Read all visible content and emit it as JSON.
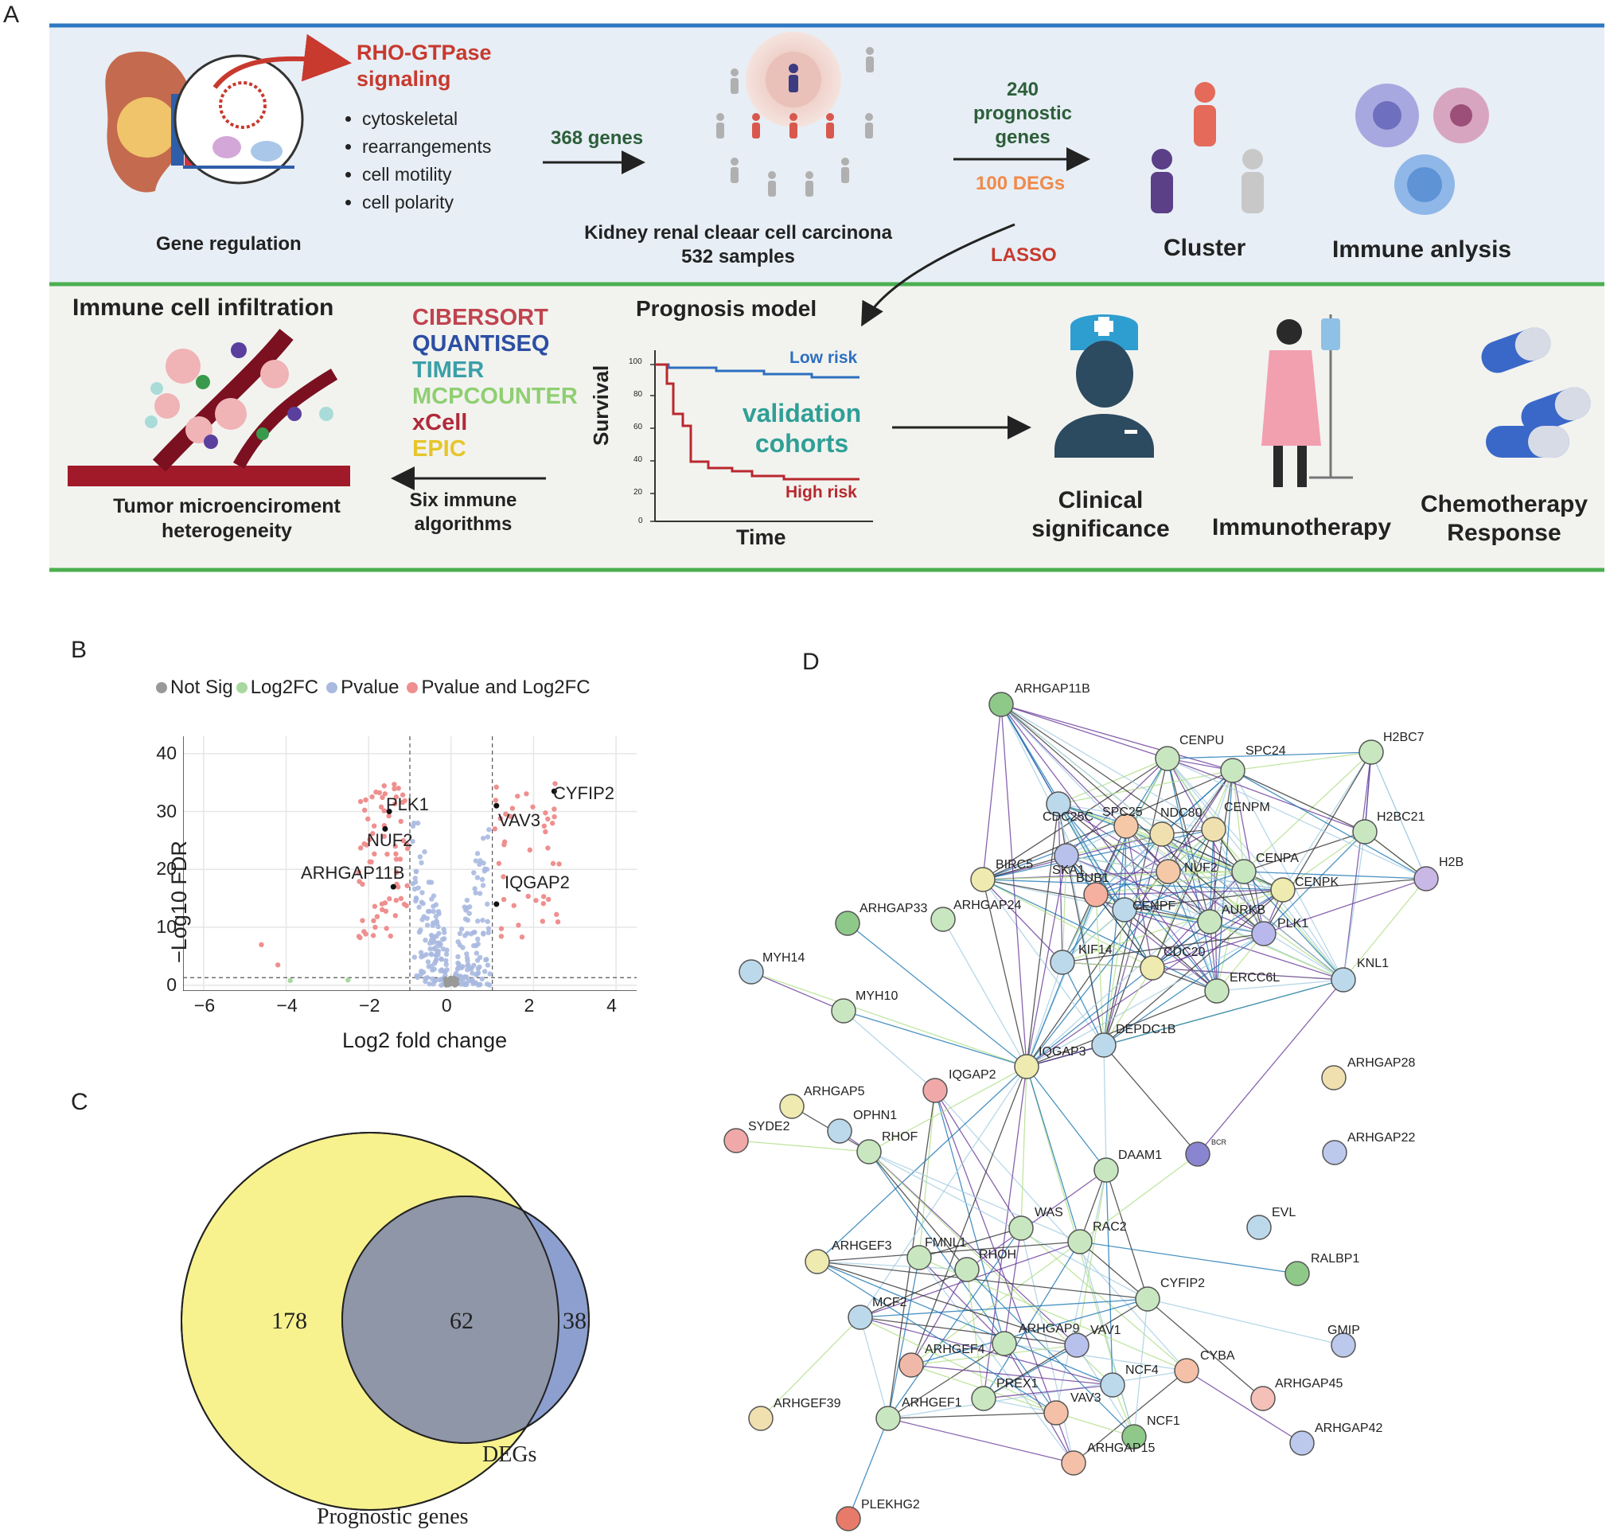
{
  "panels": {
    "a": "A",
    "b": "B",
    "c": "C",
    "d": "D"
  },
  "panelA": {
    "gene_regulation": "Gene regulation",
    "rho_title": "RHO-GTPase signaling",
    "rho_line1": "RHO-GTPase",
    "rho_line2": "signaling",
    "bullets": [
      "cytoskeletal",
      "rearrangements",
      "cell motility",
      "cell polarity"
    ],
    "genes368": "368 genes",
    "kirc_line1": "Kidney renal cleaar cell carcinona",
    "kirc_line2": "532 samples",
    "prog_line1": "240",
    "prog_line2": "prognostic",
    "prog_line3": "genes",
    "degs": "100 DEGs",
    "lasso": "LASSO",
    "cluster": "Cluster",
    "immune": "Immune anlysis",
    "infiltration": "Immune cell infiltration",
    "algorithms": [
      {
        "name": "CIBERSORT",
        "color": "#c0434e"
      },
      {
        "name": "QUANTISEQ",
        "color": "#2c4ea3"
      },
      {
        "name": "TIMER",
        "color": "#3aa0a8"
      },
      {
        "name": "MCPCOUNTER",
        "color": "#8fcf72"
      },
      {
        "name": "xCell",
        "color": "#b02a3a"
      },
      {
        "name": "EPIC",
        "color": "#e6c52a"
      }
    ],
    "tme_line1": "Tumor microenciroment",
    "tme_line2": "heterogeneity",
    "six_line1": "Six immune",
    "six_line2": "algorithms",
    "prognosis_model": "Prognosis model",
    "survival": "Survival",
    "time": "Time",
    "low_risk": "Low risk",
    "high_risk": "High risk",
    "validation1": "validation",
    "validation2": "cohorts",
    "km_ticks": [
      "100",
      "80",
      "60",
      "40",
      "20",
      "0"
    ],
    "clinical1": "Clinical",
    "clinical2": "significance",
    "immunotherapy": "Immunotherapy",
    "chemo1": "Chemotherapy",
    "chemo2": "Response"
  },
  "volcano": {
    "legend": [
      "Not Sig",
      "Log2FC",
      "Pvalue",
      "Pvalue and Log2FC"
    ],
    "legend_colors": [
      "#999999",
      "#a8d8a0",
      "#a9b9e0",
      "#ef8f8f"
    ],
    "ylabel": "−Log10 FDR",
    "xlabel": "Log2 fold change",
    "xticks": [
      "−6",
      "−4",
      "−2",
      "0",
      "2",
      "4"
    ],
    "yticks": [
      "0",
      "10",
      "20",
      "30",
      "40"
    ],
    "labels": [
      "PLK1",
      "NUF2",
      "ARHGAP11B",
      "CYFIP2",
      "VAV3",
      "IQGAP2"
    ]
  },
  "chart_data": {
    "type": "scatter",
    "xlabel": "Log2 fold change",
    "ylabel": "−Log10 FDR",
    "xlim": [
      -6.5,
      4.5
    ],
    "ylim": [
      -1,
      43
    ],
    "thresholds": {
      "log2fc": [
        -1,
        1
      ],
      "fdr": 1.3
    },
    "highlighted": [
      {
        "name": "PLK1",
        "x": -1.5,
        "y": 30
      },
      {
        "name": "NUF2",
        "x": -1.6,
        "y": 27
      },
      {
        "name": "ARHGAP11B",
        "x": -1.4,
        "y": 17
      },
      {
        "name": "CYFIP2",
        "x": 2.5,
        "y": 33.5
      },
      {
        "name": "VAV3",
        "x": 1.1,
        "y": 31
      },
      {
        "name": "IQGAP2",
        "x": 1.1,
        "y": 14
      }
    ]
  },
  "venn": {
    "left_only": "178",
    "overlap": "62",
    "right_only": "38",
    "left_label": "Prognostic genes",
    "right_label": "DEGs",
    "left_color": "#f7f28e",
    "right_color": "#8c9fcf"
  },
  "network": {
    "nodes": [
      {
        "label": "ARHGAP11B",
        "color": "#8fc98a"
      },
      {
        "label": "CENPU",
        "color": "#c8e7c0"
      },
      {
        "label": "SPC24",
        "color": "#c8e7c0"
      },
      {
        "label": "H2BC7",
        "color": "#c8e7c0"
      },
      {
        "label": "CDC25C",
        "color": "#bcd9ec"
      },
      {
        "label": "SPC25",
        "color": "#f5c9a8"
      },
      {
        "label": "NDC80",
        "color": "#f0e0b0"
      },
      {
        "label": "CENPM",
        "color": "#f0e0b0"
      },
      {
        "label": "H2BC21",
        "color": "#c8e7c0"
      },
      {
        "label": "BIRC5",
        "color": "#eeeab0"
      },
      {
        "label": "SKA1",
        "color": "#b8c0ec"
      },
      {
        "label": "NUF2",
        "color": "#f5c9a8"
      },
      {
        "label": "CENPA",
        "color": "#c8e7c0"
      },
      {
        "label": "H2B",
        "color": "#c9b8e6"
      },
      {
        "label": "BUB1",
        "color": "#f5b0a0"
      },
      {
        "label": "CENPK",
        "color": "#eeeab0"
      },
      {
        "label": "CENPF",
        "color": "#bcd9ec"
      },
      {
        "label": "AURKB",
        "color": "#c8e7c0"
      },
      {
        "label": "PLK1",
        "color": "#b8b8ec"
      },
      {
        "label": "ARHGAP33",
        "color": "#8fc98a"
      },
      {
        "label": "ARHGAP24",
        "color": "#c8e7c0"
      },
      {
        "label": "MYH14",
        "color": "#bcd9ec"
      },
      {
        "label": "KIF14",
        "color": "#bcd9ec"
      },
      {
        "label": "CDC20",
        "color": "#eeeab0"
      },
      {
        "label": "ERCC6L",
        "color": "#c8e7c0"
      },
      {
        "label": "KNL1",
        "color": "#bcd9ec"
      },
      {
        "label": "MYH10",
        "color": "#c8e7c0"
      },
      {
        "label": "DEPDC1B",
        "color": "#bcd9ec"
      },
      {
        "label": "IQGAP3",
        "color": "#eeeab0"
      },
      {
        "label": "ARHGAP28",
        "color": "#f0e0b0"
      },
      {
        "label": "IQGAP2",
        "color": "#f0a8a8"
      },
      {
        "label": "ARHGAP5",
        "color": "#eeeab0"
      },
      {
        "label": "OPHN1",
        "color": "#bcd9ec"
      },
      {
        "label": "SYDE2",
        "color": "#f0a8a8"
      },
      {
        "label": "RHOF",
        "color": "#c8e7c0"
      },
      {
        "label": "ARHGAP22",
        "color": "#bcc8ec"
      },
      {
        "label": "BCR",
        "color": "#8a85d0"
      },
      {
        "label": "DAAM1",
        "color": "#c8e7c0"
      },
      {
        "label": "EVL",
        "color": "#bcd9ec"
      },
      {
        "label": "WAS",
        "color": "#c8e7c0"
      },
      {
        "label": "RAC2",
        "color": "#c8e7c0"
      },
      {
        "label": "ARHGEF3",
        "color": "#eeeab0"
      },
      {
        "label": "FMNL1",
        "color": "#c8e7c0"
      },
      {
        "label": "RHOH",
        "color": "#c8e7c0"
      },
      {
        "label": "RALBP1",
        "color": "#8fc98a"
      },
      {
        "label": "CYFIP2",
        "color": "#c8e7c0"
      },
      {
        "label": "MCF2",
        "color": "#bcd9ec"
      },
      {
        "label": "GMIP",
        "color": "#bcc8ec"
      },
      {
        "label": "ARHGAP9",
        "color": "#c8e7c0"
      },
      {
        "label": "VAV1",
        "color": "#b8c0ec"
      },
      {
        "label": "ARHGEF4",
        "color": "#f0b8a8"
      },
      {
        "label": "CYBA",
        "color": "#f5c0a8"
      },
      {
        "label": "NCF4",
        "color": "#bcd9ec"
      },
      {
        "label": "ARHGAP45",
        "color": "#f5c0b8"
      },
      {
        "label": "ARHGEF39",
        "color": "#f0e0b0"
      },
      {
        "label": "PREX1",
        "color": "#c8e7c0"
      },
      {
        "label": "ARHGEF1",
        "color": "#c8e7c0"
      },
      {
        "label": "VAV3",
        "color": "#f5c0a8"
      },
      {
        "label": "NCF1",
        "color": "#8fc98a"
      },
      {
        "label": "ARHGAP42",
        "color": "#bcc8ec"
      },
      {
        "label": "ARHGAP15",
        "color": "#f5c0a8"
      },
      {
        "label": "PLEKHG2",
        "color": "#e87a6a"
      }
    ]
  }
}
